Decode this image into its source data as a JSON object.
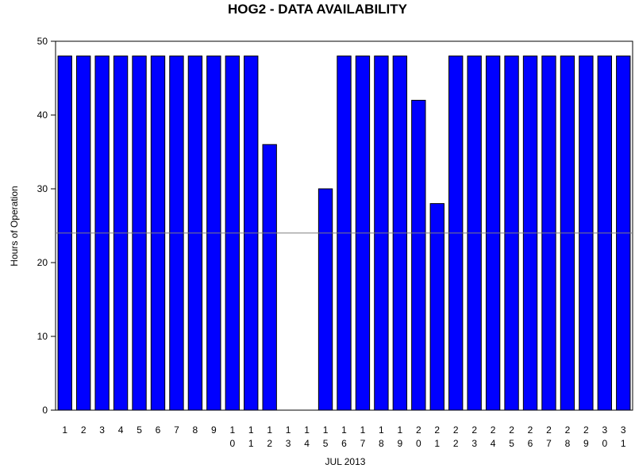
{
  "chart_data": {
    "type": "bar",
    "title": "HOG2 - DATA AVAILABILITY",
    "x_label": "JUL 2013",
    "y_label": "Hours of Operation",
    "categories": [
      "1",
      "2",
      "3",
      "4",
      "5",
      "6",
      "7",
      "8",
      "9",
      "10",
      "11",
      "12",
      "13",
      "14",
      "15",
      "16",
      "17",
      "18",
      "19",
      "20",
      "21",
      "22",
      "23",
      "24",
      "25",
      "26",
      "27",
      "28",
      "29",
      "30",
      "31"
    ],
    "values": [
      48,
      48,
      48,
      48,
      48,
      48,
      48,
      48,
      48,
      48,
      48,
      36,
      0,
      0,
      30,
      48,
      48,
      48,
      48,
      42,
      28,
      48,
      48,
      48,
      48,
      48,
      48,
      48,
      48,
      48,
      48
    ],
    "color": "#0000ff",
    "ylim": [
      0,
      50
    ],
    "yticks": [
      0,
      10,
      20,
      30,
      40,
      50
    ],
    "reference_line": 24,
    "reference_color": "#808080"
  }
}
